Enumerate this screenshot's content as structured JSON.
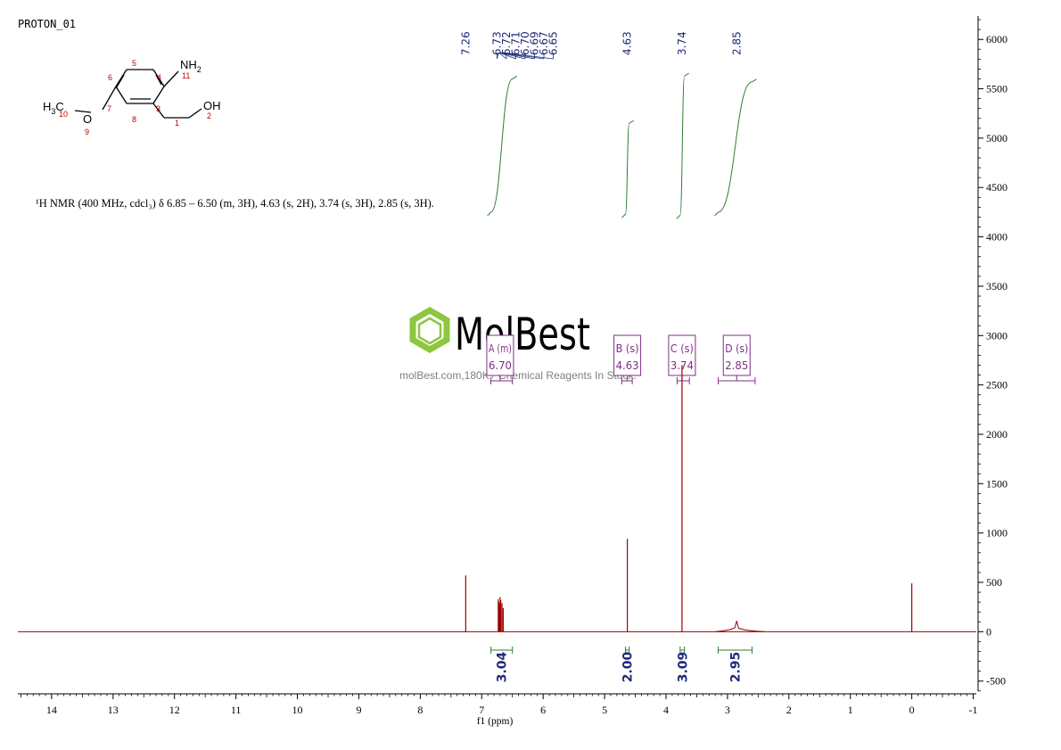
{
  "spectrum_name": "PROTON_01",
  "description": "¹H NMR (400 MHz, cdcl₃) δ 6.85 – 6.50 (m, 3H), 4.63 (s, 2H), 3.74 (s, 3H), 2.85 (s, 3H).",
  "watermark": {
    "brand": "MolBest",
    "tagline": "molBest.com,180K+ Chemical Reagents In Stock."
  },
  "structure": {
    "atoms": [
      {
        "label": "NH2",
        "number": "11"
      },
      {
        "label": "OH",
        "number": "2"
      },
      {
        "label": "O",
        "number": "9"
      },
      {
        "label": "H3C",
        "number": "10"
      }
    ],
    "ring_numbers": [
      "4",
      "5",
      "6",
      "7",
      "8",
      "3",
      "1"
    ]
  },
  "colors": {
    "spectrum": "#9a0000",
    "integral_curve": "#2e7d32",
    "integral_bracket": "#2e7d32",
    "integral_value": "#1f2a7a",
    "peak_label": "#1f2a7a",
    "multiplet_box": "#7d2f84",
    "axis": "#000000",
    "structure_numbers": "#c00000",
    "watermark": "#8dc63f"
  },
  "chart_data": {
    "type": "line",
    "xlabel": "f1 (ppm)",
    "x_ticks": [
      14,
      13,
      12,
      11,
      10,
      9,
      8,
      7,
      6,
      5,
      4,
      3,
      2,
      1,
      0,
      -1
    ],
    "x_tick_labels": [
      "14",
      "13",
      "12",
      "11",
      "10",
      "9",
      "8",
      "7",
      "6",
      "5",
      "4",
      "3",
      "2",
      "1",
      "0",
      "-1"
    ],
    "xlim": [
      14.55,
      -1.05
    ],
    "x_reversed": true,
    "ylim": [
      -620,
      6300
    ],
    "y_ticks": [
      6000,
      5500,
      5000,
      4500,
      4000,
      3500,
      3000,
      2500,
      2000,
      1500,
      1000,
      500,
      0,
      -500
    ],
    "y_tick_labels": [
      "6000",
      "5500",
      "5000",
      "4500",
      "4000",
      "3500",
      "3000",
      "2500",
      "2000",
      "1500",
      "1000",
      "500",
      "0",
      "-500"
    ],
    "y_axis_side": "right",
    "grid": false,
    "peaks": [
      {
        "ppm": 7.26,
        "height": 570
      },
      {
        "ppm": 6.73,
        "height": 330
      },
      {
        "ppm": 6.72,
        "height": 300
      },
      {
        "ppm": 6.71,
        "height": 280
      },
      {
        "ppm": 6.7,
        "height": 350
      },
      {
        "ppm": 6.69,
        "height": 320
      },
      {
        "ppm": 6.67,
        "height": 290
      },
      {
        "ppm": 6.65,
        "height": 240
      },
      {
        "ppm": 4.63,
        "height": 940
      },
      {
        "ppm": 3.74,
        "height": 2700
      },
      {
        "ppm": 2.85,
        "height": 110
      },
      {
        "ppm": 0.0,
        "height": 490
      }
    ],
    "peak_labels": [
      "7.26",
      "6.73",
      "6.72",
      "6.71",
      "6.70",
      "6.69",
      "6.67",
      "6.65",
      "4.63",
      "3.74",
      "2.85"
    ],
    "multiplets": [
      {
        "label": "A (m)",
        "shift": "6.70",
        "range": [
          6.85,
          6.5
        ]
      },
      {
        "label": "B (s)",
        "shift": "4.63",
        "range": [
          4.72,
          4.55
        ]
      },
      {
        "label": "C (s)",
        "shift": "3.74",
        "range": [
          3.82,
          3.62
        ]
      },
      {
        "label": "D (s)",
        "shift": "2.85",
        "range": [
          3.15,
          2.55
        ]
      }
    ],
    "integrals": [
      {
        "value": "3.04",
        "range": [
          6.85,
          6.5
        ],
        "y_start": 4250,
        "y_end": 5600
      },
      {
        "value": "2.00",
        "range": [
          4.66,
          4.6
        ],
        "y_start": 4230,
        "y_end": 5150
      },
      {
        "value": "3.09",
        "range": [
          3.77,
          3.7
        ],
        "y_start": 4220,
        "y_end": 5630
      },
      {
        "value": "2.95",
        "range": [
          3.15,
          2.6
        ],
        "y_start": 4250,
        "y_end": 5570
      }
    ]
  }
}
